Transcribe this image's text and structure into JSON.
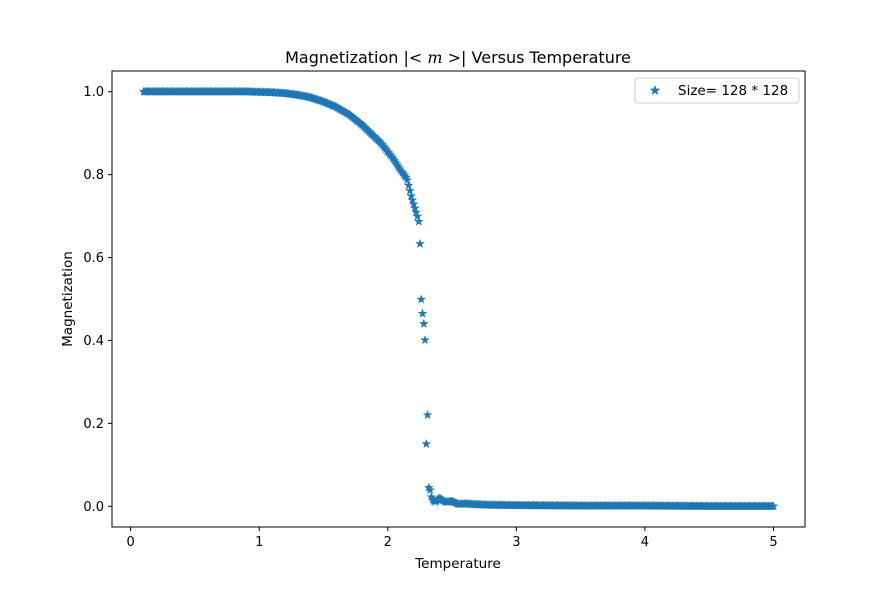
{
  "chart_data": {
    "type": "scatter",
    "title": "Magnetization |< m >| Versus Temperature",
    "title_parts": {
      "prefix": "Magnetization |",
      "math": "< m >",
      "suffix": "| Versus Temperature"
    },
    "xlabel": "Temperature",
    "ylabel": "Magnetization",
    "xlim": [
      -0.145,
      5.245
    ],
    "ylim": [
      -0.05,
      1.05
    ],
    "xticks": [
      0,
      1,
      2,
      3,
      4,
      5
    ],
    "xtick_labels": [
      "0",
      "1",
      "2",
      "3",
      "4",
      "5"
    ],
    "yticks": [
      0.0,
      0.2,
      0.4,
      0.6,
      0.8,
      1.0
    ],
    "ytick_labels": [
      "0.0",
      "0.2",
      "0.4",
      "0.6",
      "0.8",
      "1.0"
    ],
    "grid": false,
    "legend_position": "top-right",
    "marker": "star",
    "series": [
      {
        "name": "Size= 128 * 128",
        "color": "#1f77b4",
        "x_range": [
          0.1,
          5.0
        ],
        "num_points": 500,
        "points": [
          [
            0.1,
            1.0
          ],
          [
            0.3,
            1.0
          ],
          [
            0.5,
            1.0
          ],
          [
            0.7,
            1.0
          ],
          [
            0.9,
            1.0
          ],
          [
            1.0,
            0.999
          ],
          [
            1.1,
            0.998
          ],
          [
            1.2,
            0.996
          ],
          [
            1.3,
            0.992
          ],
          [
            1.4,
            0.986
          ],
          [
            1.5,
            0.976
          ],
          [
            1.6,
            0.963
          ],
          [
            1.7,
            0.945
          ],
          [
            1.8,
            0.92
          ],
          [
            1.85,
            0.905
          ],
          [
            1.9,
            0.89
          ],
          [
            1.95,
            0.875
          ],
          [
            2.0,
            0.855
          ],
          [
            2.05,
            0.835
          ],
          [
            2.1,
            0.81
          ],
          [
            2.15,
            0.79
          ],
          [
            2.18,
            0.75
          ],
          [
            2.2,
            0.73
          ],
          [
            2.22,
            0.71
          ],
          [
            2.24,
            0.69
          ],
          [
            2.25,
            0.64
          ],
          [
            2.26,
            0.5
          ],
          [
            2.27,
            0.465
          ],
          [
            2.28,
            0.44
          ],
          [
            2.29,
            0.4
          ],
          [
            2.3,
            0.14
          ],
          [
            2.31,
            0.225
          ],
          [
            2.32,
            0.03
          ],
          [
            2.33,
            0.04
          ],
          [
            2.34,
            0.02
          ],
          [
            2.35,
            0.015
          ],
          [
            2.37,
            0.01
          ],
          [
            2.4,
            0.02
          ],
          [
            2.45,
            0.01
          ],
          [
            2.5,
            0.012
          ],
          [
            2.55,
            0.005
          ],
          [
            2.6,
            0.006
          ],
          [
            2.7,
            0.004
          ],
          [
            2.8,
            0.003
          ],
          [
            3.0,
            0.002
          ],
          [
            3.5,
            0.001
          ],
          [
            4.0,
            0.001
          ],
          [
            4.5,
            0.0
          ],
          [
            5.0,
            0.0
          ]
        ]
      }
    ]
  }
}
